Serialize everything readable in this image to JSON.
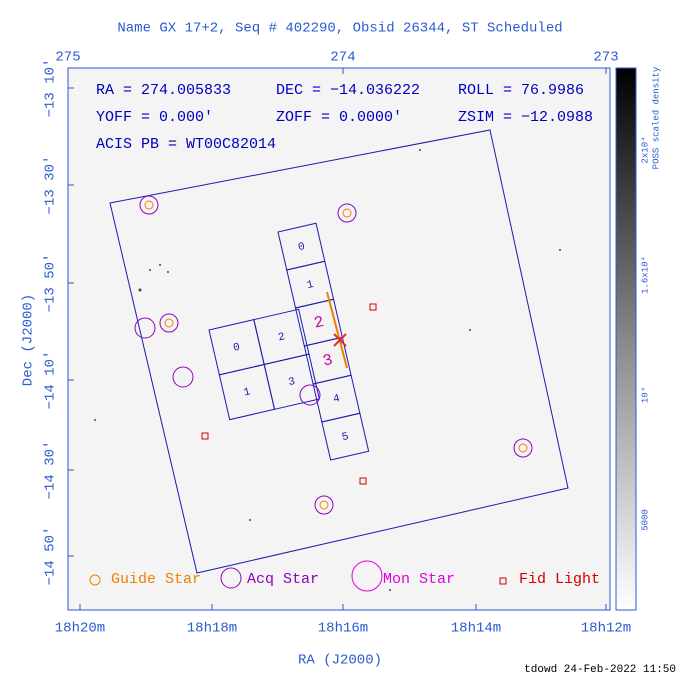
{
  "title": "Name GX 17+2, Seq # 402290, Obsid 26344, ST Scheduled",
  "top_axis": [
    "275",
    "274",
    "273"
  ],
  "left_axis": [
    "−13 10'",
    "−13 30'",
    "−13 50'",
    "−14 10'",
    "−14 30'",
    "−14 50'"
  ],
  "bottom_axis": [
    "18h20m",
    "18h18m",
    "18h16m",
    "18h14m",
    "18h12m"
  ],
  "x_label": "RA (J2000)",
  "y_label": "Dec (J2000)",
  "info": [
    "RA = 274.005833",
    "DEC = −14.036222",
    "ROLL = 76.9986",
    "YOFF =    0.000'",
    "ZOFF =  0.0000'",
    "ZSIM = −12.0988",
    "ACIS PB = WT00C82014"
  ],
  "acis_s_chips": [
    "0",
    "1",
    "2",
    "3",
    "4",
    "5"
  ],
  "acis_i_chips": [
    "0",
    "2",
    "1",
    "3"
  ],
  "legend": [
    "Guide Star",
    "Acq Star",
    "Mon Star",
    "Fid Light"
  ],
  "colorbar": {
    "title": "POSS scaled density",
    "labels": [
      "2x10⁴",
      "1.6x10⁴",
      "10⁴",
      "5000"
    ]
  },
  "footer": "tdowd 24-Feb-2022 11:50"
}
